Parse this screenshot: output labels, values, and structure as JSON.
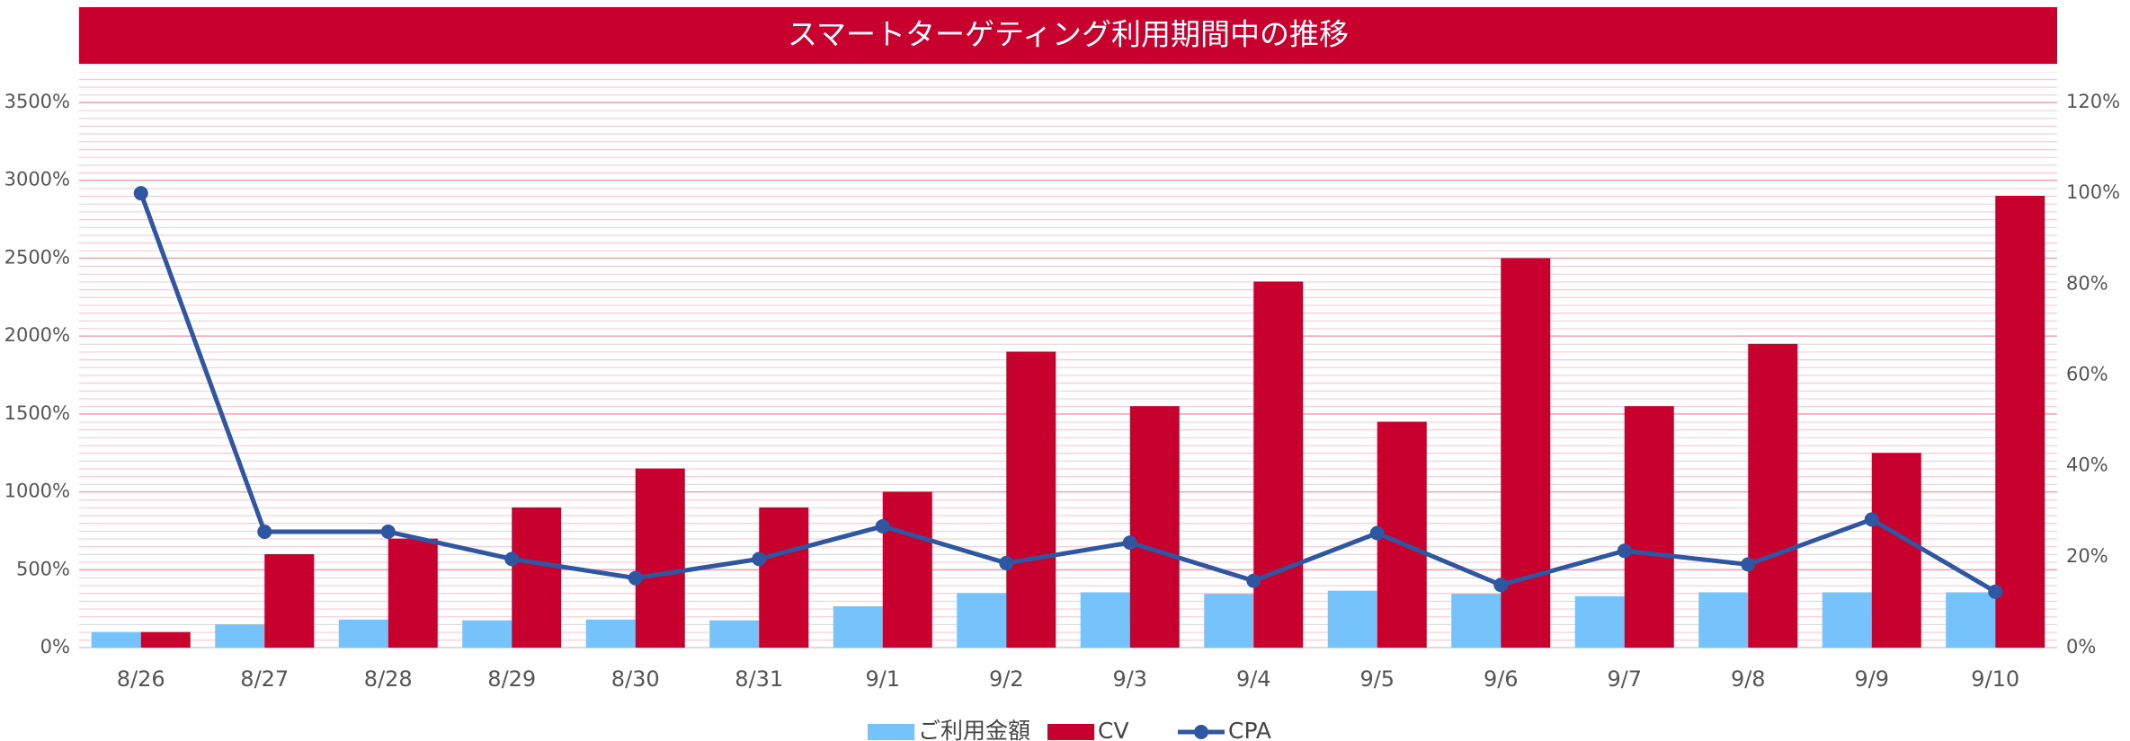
{
  "chart_data": {
    "type": "bar-line",
    "title": "スマートターゲティング利用期間中の推移",
    "categories": [
      "8/26",
      "8/27",
      "8/28",
      "8/29",
      "8/30",
      "8/31",
      "9/1",
      "9/2",
      "9/3",
      "9/4",
      "9/5",
      "9/6",
      "9/7",
      "9/8",
      "9/9",
      "9/10"
    ],
    "series": [
      {
        "name": "ご利用金額",
        "type": "bar",
        "color": "#76c2fb",
        "values": [
          100,
          150,
          180,
          175,
          180,
          175,
          265,
          350,
          355,
          345,
          365,
          345,
          330,
          355,
          355,
          355
        ]
      },
      {
        "name": "CV",
        "type": "bar",
        "color": "#c8002d",
        "values": [
          100,
          600,
          700,
          900,
          1150,
          900,
          1000,
          1900,
          1550,
          2350,
          1450,
          2500,
          1550,
          1950,
          1250,
          2900
        ]
      },
      {
        "name": "CPA",
        "type": "line",
        "axis": "y2",
        "color": "#2f56a0",
        "values": [
          100,
          25.5,
          25.5,
          19.5,
          15.3,
          19.5,
          26.7,
          18.6,
          23.1,
          14.7,
          25.2,
          13.8,
          21.3,
          18.3,
          28.2,
          12.3
        ]
      }
    ],
    "ylim": [
      0,
      3500
    ],
    "yticks": [
      {
        "value": 0,
        "label": "0%"
      },
      {
        "value": 500,
        "label": "500%"
      },
      {
        "value": 1000,
        "label": "1000%"
      },
      {
        "value": 1500,
        "label": "1500%"
      },
      {
        "value": 2000,
        "label": "2000%"
      },
      {
        "value": 2500,
        "label": "2500%"
      },
      {
        "value": 3000,
        "label": "3000%"
      },
      {
        "value": 3500,
        "label": "3500%"
      }
    ],
    "y2lim": [
      0,
      120
    ],
    "y2ticks": [
      {
        "value": 0,
        "label": "0%"
      },
      {
        "value": 20,
        "label": "20%"
      },
      {
        "value": 40,
        "label": "40%"
      },
      {
        "value": 60,
        "label": "60%"
      },
      {
        "value": 80,
        "label": "80%"
      },
      {
        "value": 100,
        "label": "100%"
      },
      {
        "value": 120,
        "label": "120%"
      }
    ],
    "grid": true,
    "legend": "bottom"
  }
}
